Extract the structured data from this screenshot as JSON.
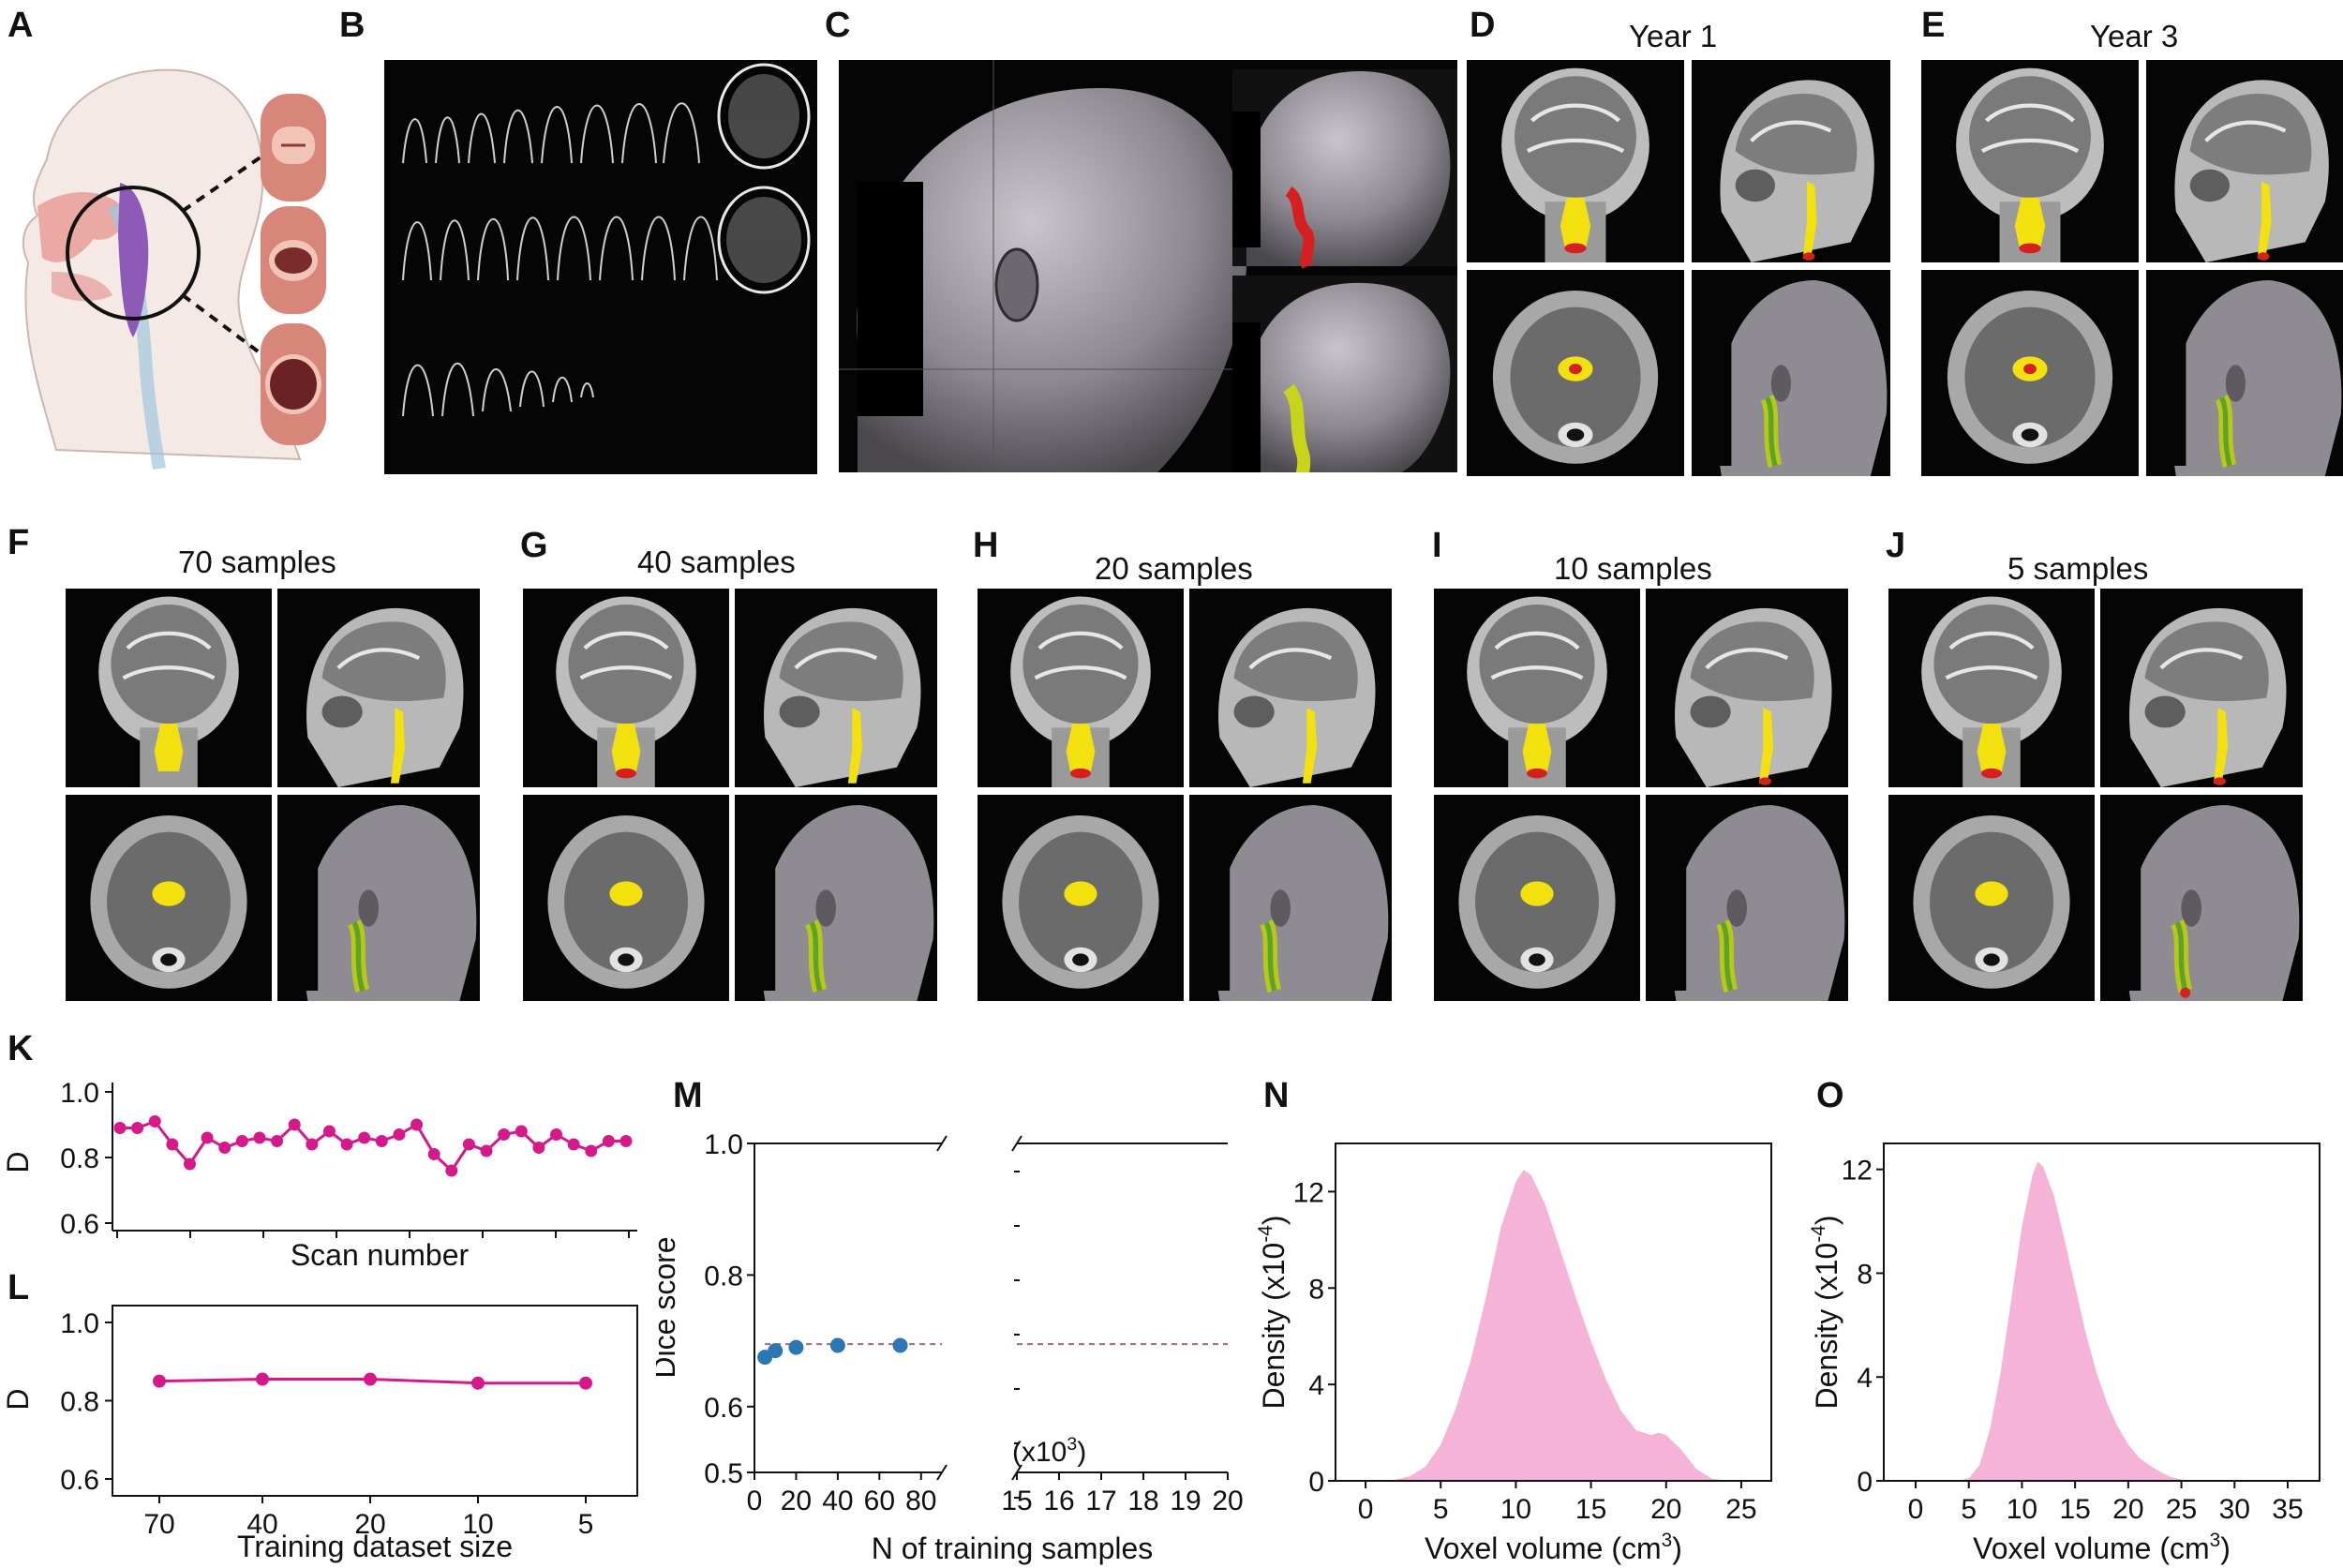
{
  "panel_labels": [
    "A",
    "B",
    "C",
    "D",
    "E",
    "F",
    "G",
    "H",
    "I",
    "J",
    "K",
    "L",
    "M",
    "N",
    "O"
  ],
  "titles": {
    "D": "Year 1",
    "E": "Year 3",
    "F": "70 samples",
    "G": "40 samples",
    "H": "20 samples",
    "I": "10 samples",
    "J": "5 samples"
  },
  "colors": {
    "magenta": "#d6198a",
    "blue": "#2a77b4",
    "pink_fill": "#f6b3d8",
    "seg_yellow": "#f2e10f",
    "seg_red": "#d6201f",
    "airway_purple": "#8e5ab8",
    "airway_tissue": "#e7a79a"
  },
  "chart_data": [
    {
      "panel": "K",
      "type": "line",
      "ylabel": "D",
      "xlabel": "Scan number",
      "ylim": [
        0.6,
        1.0
      ],
      "yticks": [
        "1.0",
        "0.8",
        "0.6"
      ],
      "x": [
        1,
        2,
        3,
        4,
        5,
        6,
        7,
        8,
        9,
        10,
        11,
        12,
        13,
        14,
        15,
        16,
        17,
        18,
        19,
        20,
        21,
        22,
        23,
        24,
        25,
        26,
        27,
        28,
        29,
        30
      ],
      "values": [
        0.89,
        0.89,
        0.91,
        0.84,
        0.78,
        0.86,
        0.83,
        0.85,
        0.86,
        0.85,
        0.9,
        0.84,
        0.88,
        0.84,
        0.86,
        0.85,
        0.87,
        0.9,
        0.81,
        0.76,
        0.84,
        0.82,
        0.87,
        0.88,
        0.83,
        0.87,
        0.84,
        0.82,
        0.85,
        0.85
      ],
      "grid": false
    },
    {
      "panel": "L",
      "type": "line",
      "ylabel": "D",
      "xlabel": "Training dataset size",
      "ylim": [
        0.6,
        1.0
      ],
      "yticks": [
        "1.0",
        "0.8",
        "0.6"
      ],
      "categories": [
        "70",
        "40",
        "20",
        "10",
        "5"
      ],
      "values": [
        0.85,
        0.855,
        0.855,
        0.845,
        0.845
      ],
      "grid": false
    },
    {
      "panel": "M",
      "type": "scatter",
      "ylabel": "Dice score",
      "xlabel": "N of training samples",
      "ylim": [
        0.5,
        1.0
      ],
      "yticks": [
        "1.0",
        "0.8",
        "0.6",
        "0.5"
      ],
      "xticks_left": [
        "0",
        "20",
        "40",
        "60",
        "80"
      ],
      "xticks_right": [
        "15",
        "16",
        "17",
        "18",
        "19",
        "20"
      ],
      "right_axis_note": "(x10",
      "right_axis_note_sup": "3",
      "right_axis_note_end": ")",
      "x": [
        5,
        10,
        20,
        40,
        70
      ],
      "values": [
        0.675,
        0.685,
        0.69,
        0.693,
        0.693
      ],
      "reference_line": 0.695,
      "grid": false
    },
    {
      "panel": "N",
      "type": "area",
      "ylabel": "Density (x10",
      "ylabel_sup": "-4",
      "ylabel_end": ")",
      "xlabel": "Voxel volume (cm",
      "xlabel_sup": "3",
      "xlabel_end": ")",
      "xlim": [
        -2,
        27
      ],
      "ylim": [
        0,
        14
      ],
      "xticks": [
        "0",
        "5",
        "10",
        "15",
        "20",
        "25"
      ],
      "yticks": [
        "12",
        "8",
        "4",
        "0"
      ],
      "x": [
        0,
        2,
        3,
        4,
        5,
        6,
        7,
        8,
        9,
        10,
        10.5,
        11,
        12,
        13,
        14,
        15,
        16,
        17,
        18,
        19,
        19.5,
        20,
        21,
        22,
        23,
        24
      ],
      "values": [
        0,
        0.05,
        0.2,
        0.6,
        1.5,
        3.0,
        5.0,
        7.6,
        10.5,
        12.4,
        12.9,
        12.7,
        11.4,
        9.5,
        7.6,
        5.8,
        4.2,
        2.9,
        2.1,
        1.9,
        2.0,
        1.9,
        1.3,
        0.5,
        0.1,
        0
      ],
      "grid": false
    },
    {
      "panel": "O",
      "type": "area",
      "ylabel": "Density (x10",
      "ylabel_sup": "-4",
      "ylabel_end": ")",
      "xlabel": "Voxel volume (cm",
      "xlabel_sup": "3",
      "xlabel_end": ")",
      "xlim": [
        -3,
        38
      ],
      "ylim": [
        0,
        13
      ],
      "xticks": [
        "0",
        "5",
        "10",
        "15",
        "20",
        "25",
        "30",
        "35"
      ],
      "yticks": [
        "12",
        "8",
        "4",
        "0"
      ],
      "x": [
        4,
        5,
        6,
        7,
        8,
        9,
        10,
        11,
        11.5,
        12,
        13,
        14,
        15,
        16,
        17,
        18,
        19,
        20,
        21,
        22,
        23,
        24,
        25,
        26
      ],
      "values": [
        0,
        0.1,
        0.6,
        2.0,
        4.2,
        7.0,
        9.8,
        11.8,
        12.3,
        12.1,
        11.0,
        9.3,
        7.5,
        5.7,
        4.2,
        3.0,
        2.1,
        1.4,
        0.9,
        0.6,
        0.35,
        0.15,
        0.05,
        0
      ],
      "grid": false
    }
  ]
}
